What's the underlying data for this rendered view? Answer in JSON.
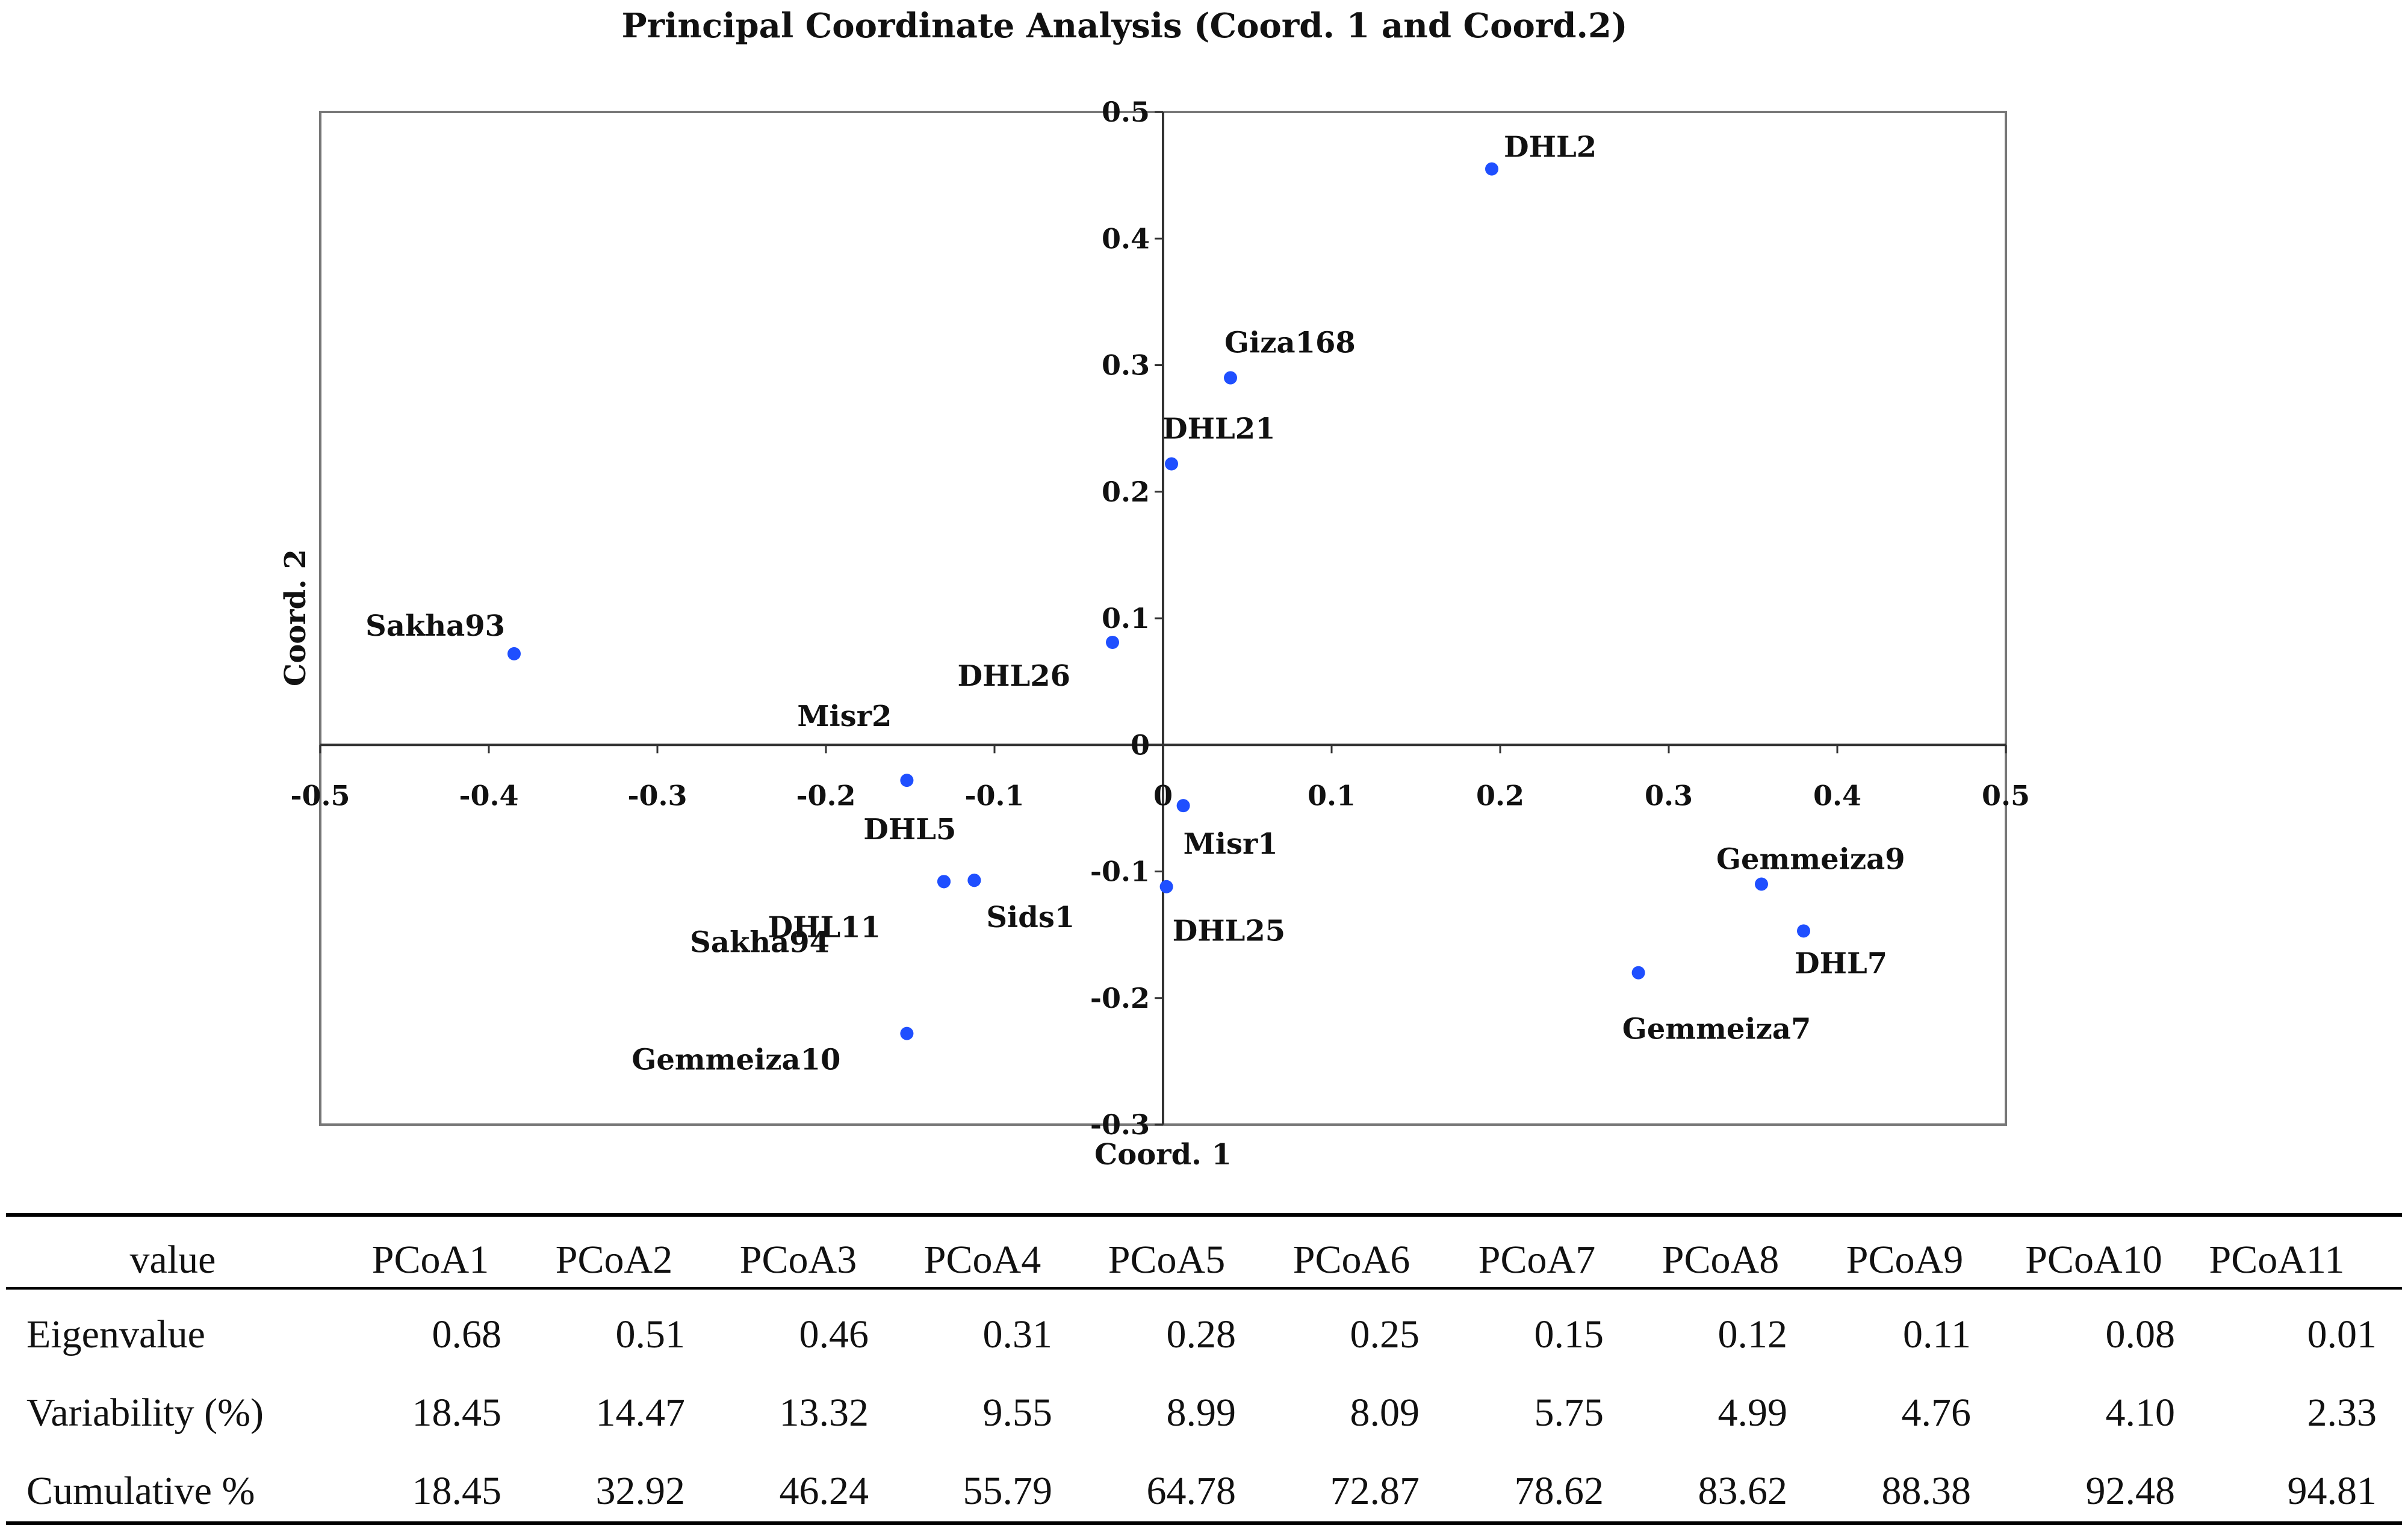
{
  "chart_data": {
    "type": "scatter",
    "title": "Principal Coordinate Analysis (Coord. 1 and Coord.2)",
    "xlabel": "Coord. 1",
    "ylabel": "Coord. 2",
    "xlim": [
      -0.5,
      0.5
    ],
    "ylim": [
      -0.3,
      0.5
    ],
    "xticks": [
      "-0.5",
      "-0.4",
      "-0.3",
      "-0.2",
      "-0.1",
      "0",
      "0.1",
      "0.2",
      "0.3",
      "0.4",
      "0.5"
    ],
    "yticks": [
      "-0.3",
      "-0.2",
      "-0.1",
      "0",
      "0.1",
      "0.2",
      "0.3",
      "0.4",
      "0.5"
    ],
    "point_color": "#1f4fff",
    "points": [
      {
        "label": "DHL2",
        "x": 0.195,
        "y": 0.455
      },
      {
        "label": "Giza168",
        "x": 0.04,
        "y": 0.29
      },
      {
        "label": "DHL21",
        "x": 0.005,
        "y": 0.222
      },
      {
        "label": "Sakha93",
        "x": -0.385,
        "y": 0.072
      },
      {
        "label": "DHL26",
        "x": -0.03,
        "y": 0.081
      },
      {
        "label": "Misr2",
        "x": -0.152,
        "y": -0.028
      },
      {
        "label": "Sakha94",
        "x": -0.13,
        "y": -0.108
      },
      {
        "label": "DHL5",
        "x": -0.112,
        "y": -0.107
      },
      {
        "label": "Misr1",
        "x": 0.012,
        "y": -0.048
      },
      {
        "label": "DHL11",
        "x": -0.13,
        "y": -0.108
      },
      {
        "label": "Sids1",
        "x": -0.112,
        "y": -0.107
      },
      {
        "label": "DHL25",
        "x": 0.002,
        "y": -0.112
      },
      {
        "label": "Gemmeiza9",
        "x": 0.355,
        "y": -0.11
      },
      {
        "label": "DHL7",
        "x": 0.38,
        "y": -0.147
      },
      {
        "label": "Gemmeiza7",
        "x": 0.282,
        "y": -0.18
      },
      {
        "label": "Gemmeiza10",
        "x": -0.152,
        "y": -0.228
      }
    ]
  },
  "table": {
    "header": [
      "value",
      "PCoA1",
      "PCoA2",
      "PCoA3",
      "PCoA4",
      "PCoA5",
      "PCoA6",
      "PCoA7",
      "PCoA8",
      "PCoA9",
      "PCoA10",
      "PCoA11"
    ],
    "rows": [
      [
        "Eigenvalue",
        "0.68",
        "0.51",
        "0.46",
        "0.31",
        "0.28",
        "0.25",
        "0.15",
        "0.12",
        "0.11",
        "0.08",
        "0.01"
      ],
      [
        "Variability (%)",
        "18.45",
        "14.47",
        "13.32",
        "9.55",
        "8.99",
        "8.09",
        "5.75",
        "4.99",
        "4.76",
        "4.10",
        "2.33"
      ],
      [
        "Cumulative %",
        "18.45",
        "32.92",
        "46.24",
        "55.79",
        "64.78",
        "72.87",
        "78.62",
        "83.62",
        "88.38",
        "92.48",
        "94.81"
      ]
    ]
  }
}
